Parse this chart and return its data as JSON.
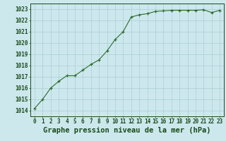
{
  "x": [
    0,
    1,
    2,
    3,
    4,
    5,
    6,
    7,
    8,
    9,
    10,
    11,
    12,
    13,
    14,
    15,
    16,
    17,
    18,
    19,
    20,
    21,
    22,
    23
  ],
  "y": [
    1014.2,
    1015.0,
    1016.0,
    1016.6,
    1017.1,
    1017.1,
    1017.6,
    1018.1,
    1018.5,
    1019.3,
    1020.3,
    1021.0,
    1022.3,
    1022.5,
    1022.6,
    1022.8,
    1022.85,
    1022.9,
    1022.9,
    1022.9,
    1022.9,
    1022.95,
    1022.7,
    1022.9
  ],
  "xlim": [
    -0.5,
    23.5
  ],
  "ylim": [
    1013.5,
    1023.5
  ],
  "yticks": [
    1014,
    1015,
    1016,
    1017,
    1018,
    1019,
    1020,
    1021,
    1022,
    1023
  ],
  "xticks": [
    0,
    1,
    2,
    3,
    4,
    5,
    6,
    7,
    8,
    9,
    10,
    11,
    12,
    13,
    14,
    15,
    16,
    17,
    18,
    19,
    20,
    21,
    22,
    23
  ],
  "xlabel": "Graphe pression niveau de la mer (hPa)",
  "line_color": "#2d6a2d",
  "marker": "+",
  "bg_color": "#cce8ed",
  "grid_color": "#aacdd4",
  "text_color": "#1a4a1a",
  "tick_fontsize": 5.5,
  "xlabel_fontsize": 7.5
}
